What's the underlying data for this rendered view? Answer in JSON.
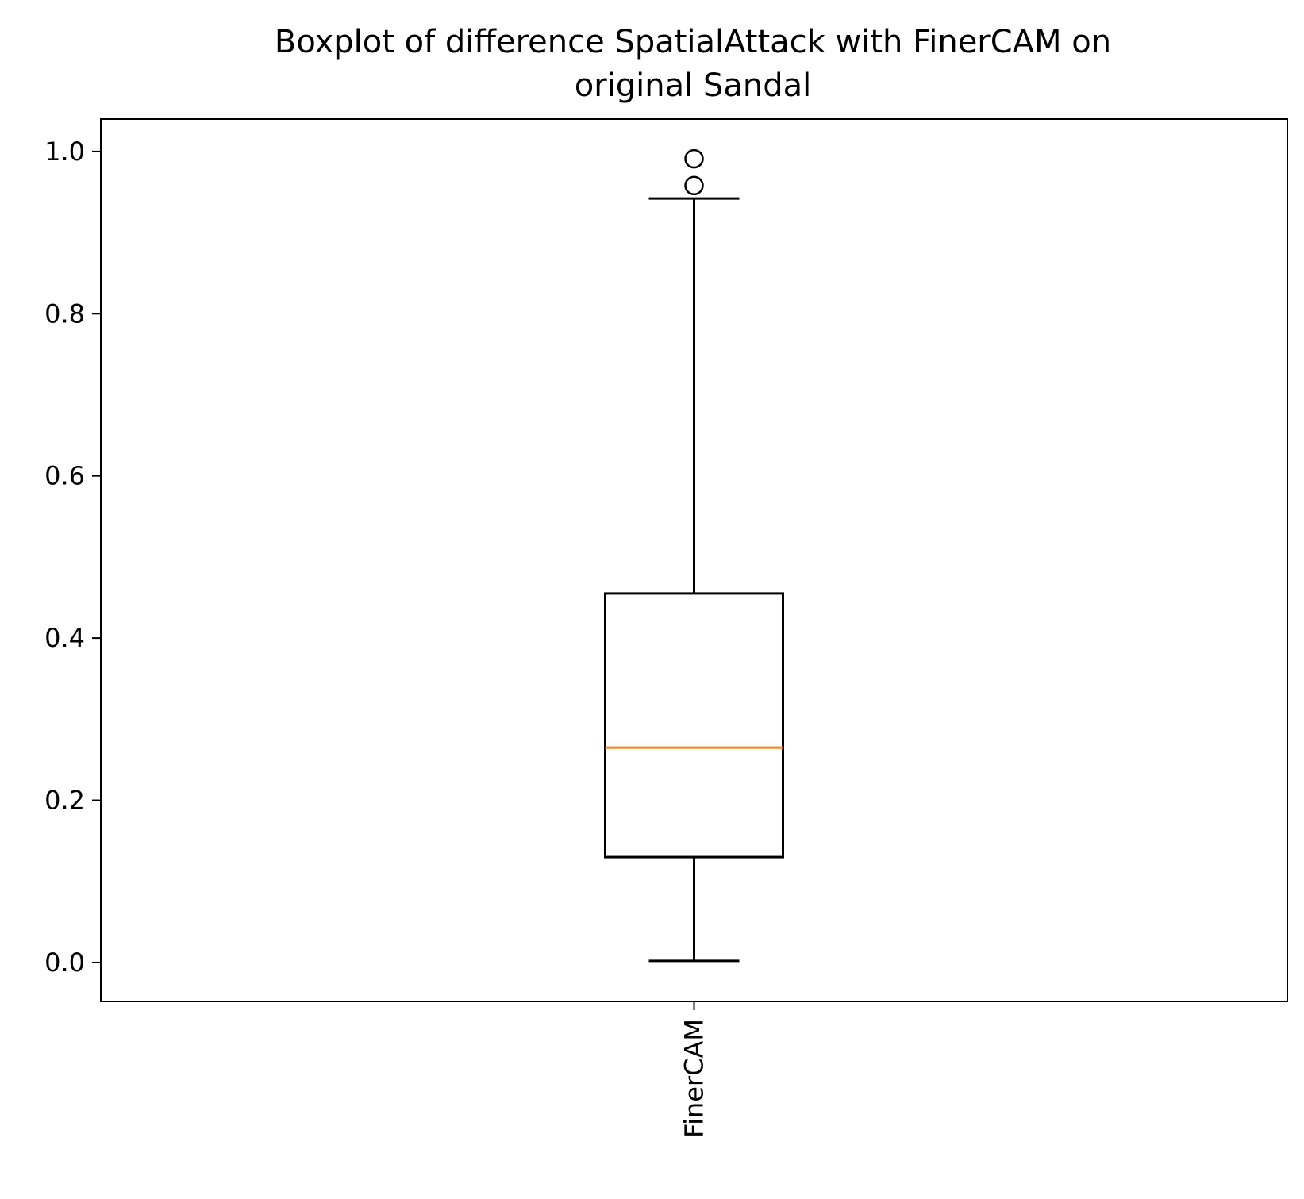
{
  "chart_data": {
    "type": "box",
    "title_lines": [
      "Boxplot of difference SpatialAttack with FinerCAM on",
      "original Sandal"
    ],
    "xlabel": "",
    "ylabel": "",
    "ylim": [
      -0.048,
      1.04
    ],
    "yticks": [
      0.0,
      0.2,
      0.4,
      0.6,
      0.8,
      1.0
    ],
    "ytick_labels": [
      "0.0",
      "0.2",
      "0.4",
      "0.6",
      "0.8",
      "1.0"
    ],
    "categories": [
      "FinerCAM"
    ],
    "boxes": [
      {
        "name": "FinerCAM",
        "whisker_low": 0.002,
        "q1": 0.13,
        "median": 0.265,
        "q3": 0.455,
        "whisker_high": 0.942,
        "outliers": [
          0.958,
          0.991
        ]
      }
    ],
    "grid": false,
    "colors": {
      "median": "#ff7f0e",
      "box": "#000000",
      "axes": "#000000"
    }
  }
}
